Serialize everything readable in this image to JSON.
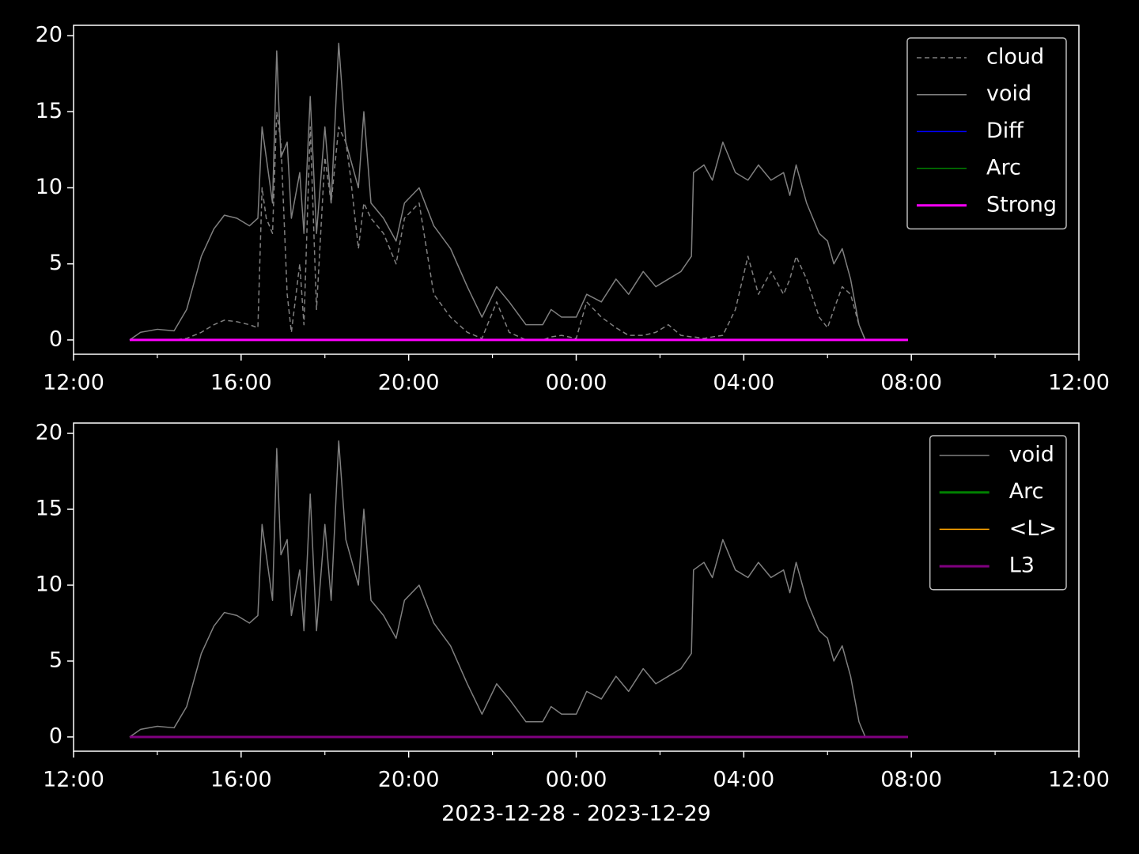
{
  "chart_data": [
    {
      "type": "line",
      "x": [
        13.34,
        13.6,
        14.0,
        14.4,
        14.7,
        15.05,
        15.35,
        15.6,
        15.9,
        16.2,
        16.4,
        16.5,
        16.6,
        16.75,
        16.85,
        16.95,
        17.1,
        17.2,
        17.4,
        17.5,
        17.65,
        17.8,
        18.0,
        18.15,
        18.33,
        18.5,
        18.6,
        18.8,
        18.93,
        19.1,
        19.4,
        19.7,
        19.9,
        20.25,
        20.6,
        21.0,
        21.4,
        21.75,
        22.1,
        22.4,
        22.8,
        23.2,
        23.4,
        23.65,
        24.0,
        24.25,
        24.6,
        24.95,
        25.25,
        25.6,
        25.9,
        26.2,
        26.5,
        26.75,
        26.8,
        27.05,
        27.25,
        27.5,
        27.8,
        28.1,
        28.35,
        28.65,
        28.95,
        29.1,
        29.25,
        29.5,
        29.8,
        30.0,
        30.15,
        30.35,
        30.55,
        30.75,
        30.9,
        31.92
      ],
      "series": [
        {
          "name": "cloud",
          "color": "#808080",
          "dashed": true,
          "linewidth": 1.5,
          "values": [
            0,
            0,
            0,
            0,
            0.1,
            0.5,
            1,
            1.3,
            1.2,
            1,
            0.8,
            10,
            8,
            7,
            15,
            13,
            3,
            0.5,
            5,
            1,
            14,
            2,
            12,
            9,
            14,
            13,
            11,
            6,
            9,
            8,
            7,
            5,
            8,
            9,
            3,
            1.5,
            0.5,
            0.1,
            2.5,
            0.5,
            0,
            0,
            0.2,
            0.3,
            0.1,
            2.5,
            1.5,
            0.8,
            0.3,
            0.3,
            0.5,
            1,
            0.3,
            0.2,
            0.2,
            0.1,
            0.2,
            0.3,
            2,
            5.5,
            3,
            4.5,
            3,
            4,
            5.5,
            4,
            1.5,
            0.8,
            2,
            3.5,
            3,
            1,
            0,
            0
          ]
        },
        {
          "name": "void",
          "color": "#808080",
          "linewidth": 1.5,
          "values": [
            0,
            0.5,
            0.7,
            0.6,
            2,
            5.5,
            7.3,
            8.2,
            8,
            7.5,
            8,
            14,
            12,
            9,
            19,
            12,
            13,
            8,
            11,
            7,
            16,
            7,
            14,
            9,
            19.5,
            13,
            12,
            10,
            15,
            9,
            8,
            6.5,
            9,
            10,
            7.5,
            6,
            3.5,
            1.5,
            3.5,
            2.5,
            1,
            1,
            2,
            1.5,
            1.5,
            3,
            2.5,
            4,
            3,
            4.5,
            3.5,
            4,
            4.5,
            5.5,
            11,
            11.5,
            10.5,
            13,
            11,
            10.5,
            11.5,
            10.5,
            11,
            9.5,
            11.5,
            9,
            7,
            6.5,
            5,
            6,
            4,
            1,
            0,
            0
          ]
        },
        {
          "name": "Diff",
          "color": "#0000ff",
          "linewidth": 1.5,
          "x": [
            13.34,
            31.92
          ],
          "values": [
            0,
            0
          ]
        },
        {
          "name": "Arc",
          "color": "#008000",
          "linewidth": 1.5,
          "x": [
            13.34,
            31.92
          ],
          "values": [
            0,
            0
          ]
        },
        {
          "name": "Strong",
          "color": "#ff00ff",
          "linewidth": 3,
          "x": [
            13.34,
            31.92
          ],
          "values": [
            0,
            0
          ]
        }
      ],
      "xlim": [
        12,
        36
      ],
      "xticks": [
        {
          "value": 12,
          "label": "12:00"
        },
        {
          "value": 16,
          "label": "16:00"
        },
        {
          "value": 20,
          "label": "20:00"
        },
        {
          "value": 24,
          "label": "00:00"
        },
        {
          "value": 28,
          "label": "04:00"
        },
        {
          "value": 32,
          "label": "08:00"
        },
        {
          "value": 36,
          "label": "12:00"
        }
      ],
      "xminorticks": [
        14,
        18,
        22,
        26,
        30,
        34
      ],
      "ylim": [
        -0.94,
        20.68
      ],
      "yticks": [
        0,
        5,
        10,
        15,
        20
      ],
      "legend": "upper right"
    },
    {
      "type": "line",
      "x": [
        13.34,
        13.6,
        14.0,
        14.4,
        14.7,
        15.05,
        15.35,
        15.6,
        15.9,
        16.2,
        16.4,
        16.5,
        16.6,
        16.75,
        16.85,
        16.95,
        17.1,
        17.2,
        17.4,
        17.5,
        17.65,
        17.8,
        18.0,
        18.15,
        18.33,
        18.5,
        18.6,
        18.8,
        18.93,
        19.1,
        19.4,
        19.7,
        19.9,
        20.25,
        20.6,
        21.0,
        21.4,
        21.75,
        22.1,
        22.4,
        22.8,
        23.2,
        23.4,
        23.65,
        24.0,
        24.25,
        24.6,
        24.95,
        25.25,
        25.6,
        25.9,
        26.2,
        26.5,
        26.75,
        26.8,
        27.05,
        27.25,
        27.5,
        27.8,
        28.1,
        28.35,
        28.65,
        28.95,
        29.1,
        29.25,
        29.5,
        29.8,
        30.0,
        30.15,
        30.35,
        30.55,
        30.75,
        30.9,
        31.92
      ],
      "series": [
        {
          "name": "void",
          "color": "#808080",
          "linewidth": 1.5,
          "values": [
            0,
            0.5,
            0.7,
            0.6,
            2,
            5.5,
            7.3,
            8.2,
            8,
            7.5,
            8,
            14,
            12,
            9,
            19,
            12,
            13,
            8,
            11,
            7,
            16,
            7,
            14,
            9,
            19.5,
            13,
            12,
            10,
            15,
            9,
            8,
            6.5,
            9,
            10,
            7.5,
            6,
            3.5,
            1.5,
            3.5,
            2.5,
            1,
            1,
            2,
            1.5,
            1.5,
            3,
            2.5,
            4,
            3,
            4.5,
            3.5,
            4,
            4.5,
            5.5,
            11,
            11.5,
            10.5,
            13,
            11,
            10.5,
            11.5,
            10.5,
            11,
            9.5,
            11.5,
            9,
            7,
            6.5,
            5,
            6,
            4,
            1,
            0,
            0
          ]
        },
        {
          "name": "Arc",
          "color": "#008000",
          "linewidth": 3,
          "x": [
            13.34,
            31.92
          ],
          "values": [
            0,
            0
          ]
        },
        {
          "name": "<L>",
          "color": "#ffa500",
          "linewidth": 1.5,
          "x": [
            13.34,
            31.92
          ],
          "values": [
            0,
            0
          ]
        },
        {
          "name": "L3",
          "color": "#800080",
          "linewidth": 3,
          "x": [
            13.34,
            31.92
          ],
          "values": [
            0,
            0
          ]
        }
      ],
      "xlim": [
        12,
        36
      ],
      "xticks": [
        {
          "value": 12,
          "label": "12:00"
        },
        {
          "value": 16,
          "label": "16:00"
        },
        {
          "value": 20,
          "label": "20:00"
        },
        {
          "value": 24,
          "label": "00:00"
        },
        {
          "value": 28,
          "label": "04:00"
        },
        {
          "value": 32,
          "label": "08:00"
        },
        {
          "value": 36,
          "label": "12:00"
        }
      ],
      "xminorticks": [
        14,
        18,
        22,
        26,
        30,
        34
      ],
      "ylim": [
        -0.94,
        20.68
      ],
      "yticks": [
        0,
        5,
        10,
        15,
        20
      ],
      "xlabel": "2023-12-28 - 2023-12-29",
      "legend": "upper right"
    }
  ]
}
